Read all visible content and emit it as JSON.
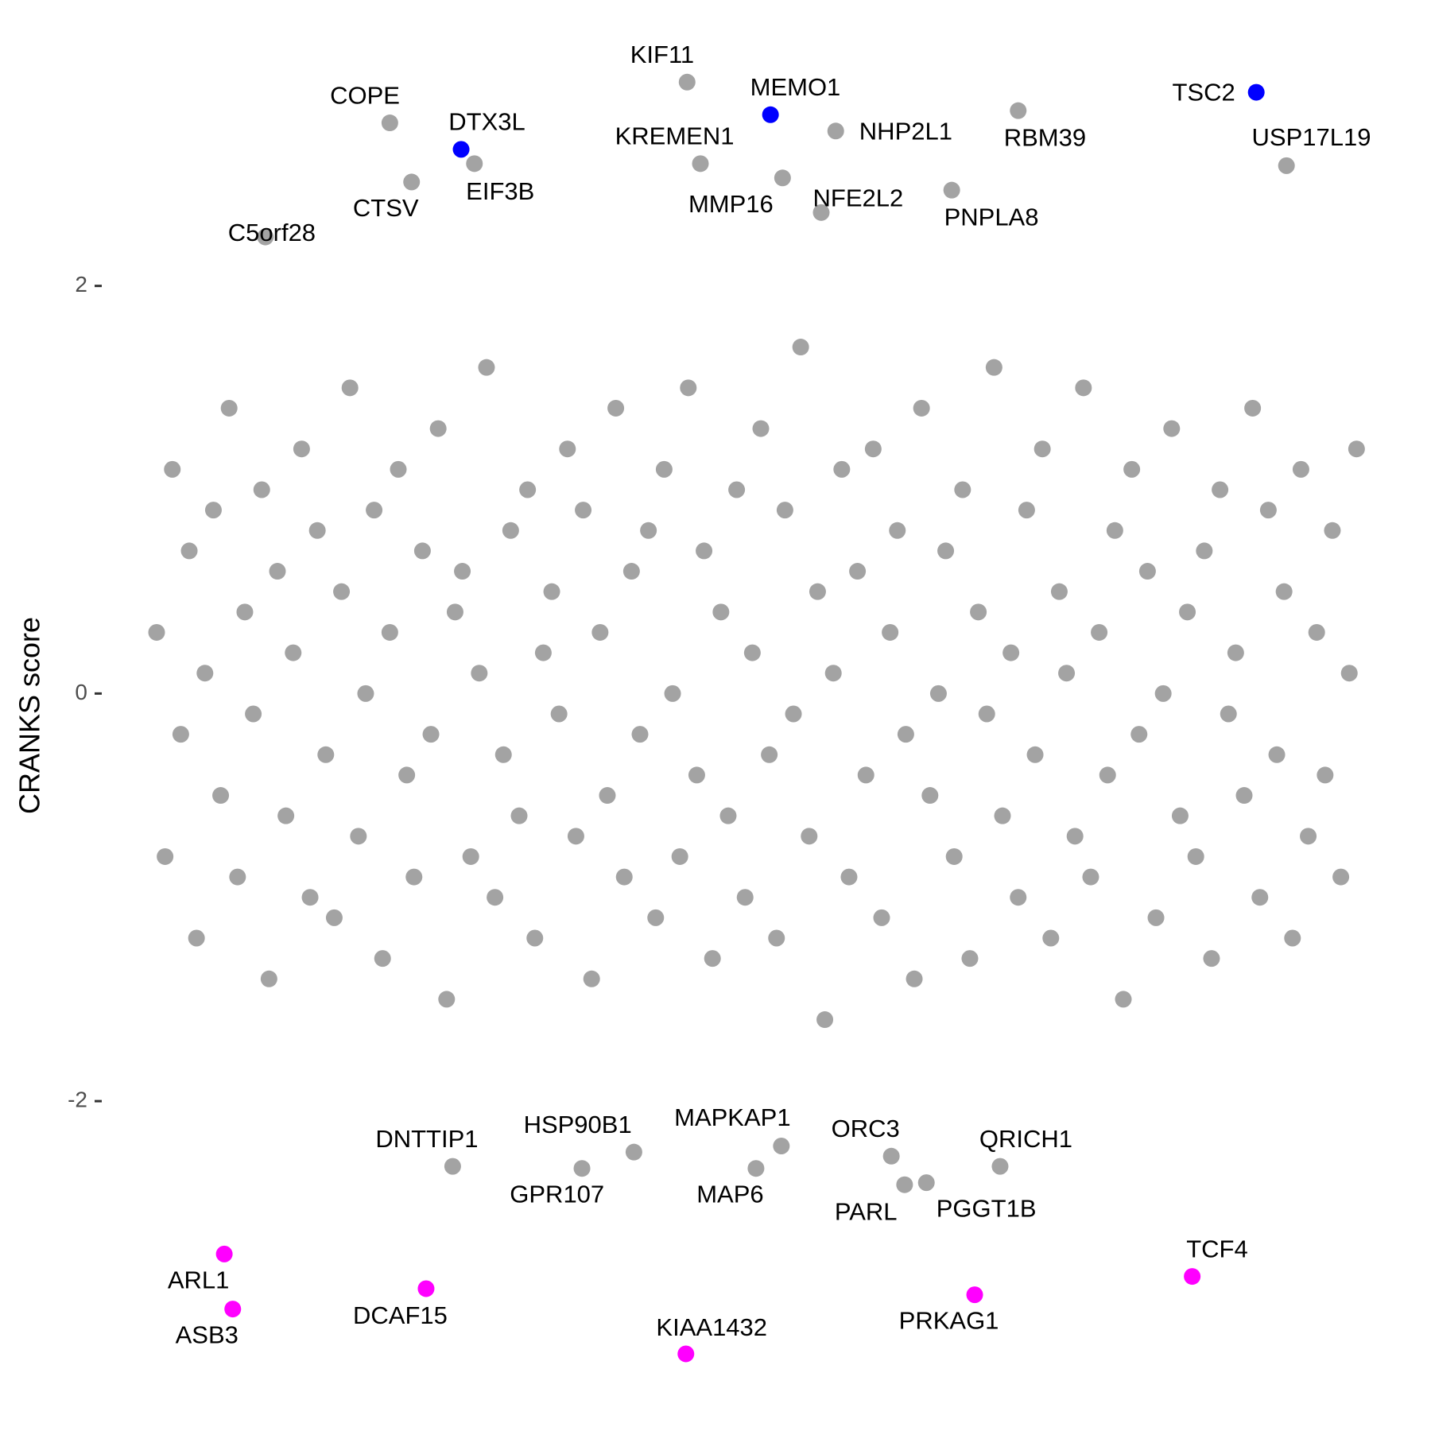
{
  "chart_data": {
    "type": "scatter",
    "y_label": "CRANKS score",
    "xlim": [
      0,
      100
    ],
    "ylim": [
      -3.4,
      3.2
    ],
    "yticks": [
      -2,
      0,
      2
    ],
    "series": [
      {
        "color": "#a3a3a3",
        "x": [
          0,
          0.7,
          1.3,
          2,
          2.7,
          3.3,
          4,
          4.7,
          5.3,
          6,
          6.7,
          7.3,
          8,
          8.7,
          9.3,
          10,
          10.7,
          11.3,
          12,
          12.7,
          13.3,
          14,
          14.7,
          15.3,
          16,
          16.7,
          17.3,
          18,
          18.7,
          19.3,
          20,
          20.7,
          21.3,
          22,
          22.7,
          23.3,
          24,
          24.7,
          25.3,
          26,
          26.7,
          27.3,
          28,
          28.7,
          29.3,
          30,
          30.7,
          31.3,
          32,
          32.7,
          33.3,
          34,
          34.7,
          35.3,
          36,
          36.7,
          37.3,
          38,
          38.7,
          39.3,
          40,
          40.7,
          41.3,
          42,
          42.7,
          43.3,
          44,
          44.7,
          45.3,
          46,
          46.7,
          47.3,
          48,
          48.7,
          49.3,
          50,
          50.7,
          51.3,
          52,
          52.7,
          53.3,
          54,
          54.7,
          55.3,
          56,
          56.7,
          57.3,
          58,
          58.7,
          59.3,
          60,
          60.7,
          61.3,
          62,
          62.7,
          63.3,
          64,
          64.7,
          65.3,
          66,
          66.7,
          67.3,
          68,
          68.7,
          69.3,
          70,
          70.7,
          71.3,
          72,
          72.7,
          73.3,
          74,
          74.7,
          75.3,
          76,
          76.7,
          77.3,
          78,
          78.7,
          79.3,
          80,
          80.7,
          81.3,
          82,
          82.7,
          83.3,
          84,
          84.7,
          85.3,
          86,
          86.7,
          87.3,
          88,
          88.7,
          89.3,
          90,
          90.7,
          91.3,
          92,
          92.7,
          93.3,
          94,
          94.7,
          95.3,
          96,
          96.7,
          97.3,
          98,
          98.7,
          99.3
        ],
        "y": [
          0.3,
          -0.8,
          1.1,
          -0.2,
          0.7,
          -1.2,
          0.1,
          0.9,
          -0.5,
          1.4,
          -0.9,
          0.4,
          -0.1,
          1.0,
          -1.4,
          0.6,
          -0.6,
          0.2,
          1.2,
          -1.0,
          0.8,
          -0.3,
          -1.1,
          0.5,
          1.5,
          -0.7,
          0.0,
          0.9,
          -1.3,
          0.3,
          1.1,
          -0.4,
          -0.9,
          0.7,
          -0.2,
          1.3,
          -1.5,
          0.4,
          0.6,
          -0.8,
          0.1,
          1.6,
          -1.0,
          -0.3,
          0.8,
          -0.6,
          1.0,
          -1.2,
          0.2,
          0.5,
          -0.1,
          1.2,
          -0.7,
          0.9,
          -1.4,
          0.3,
          -0.5,
          1.4,
          -0.9,
          0.6,
          -0.2,
          0.8,
          -1.1,
          1.1,
          0.0,
          -0.8,
          1.5,
          -0.4,
          0.7,
          -1.3,
          0.4,
          -0.6,
          1.0,
          -1.0,
          0.2,
          1.3,
          -0.3,
          -1.2,
          0.9,
          -0.1,
          1.7,
          -0.7,
          0.5,
          -1.6,
          0.1,
          1.1,
          -0.9,
          0.6,
          -0.4,
          1.2,
          -1.1,
          0.3,
          0.8,
          -0.2,
          -1.4,
          1.4,
          -0.5,
          0.0,
          0.7,
          -0.8,
          1.0,
          -1.3,
          0.4,
          -0.1,
          1.6,
          -0.6,
          0.2,
          -1.0,
          0.9,
          -0.3,
          1.2,
          -1.2,
          0.5,
          0.1,
          -0.7,
          1.5,
          -0.9,
          0.3,
          -0.4,
          0.8,
          -1.5,
          1.1,
          -0.2,
          0.6,
          -1.1,
          0.0,
          1.3,
          -0.6,
          0.4,
          -0.8,
          0.7,
          -1.3,
          1.0,
          -0.1,
          0.2,
          -0.5,
          1.4,
          -1.0,
          0.9,
          -0.3,
          0.5,
          -1.2,
          1.1,
          -0.7,
          0.3,
          -0.4,
          0.8,
          -0.9,
          0.1,
          1.2
        ]
      }
    ],
    "labeled_points": [
      {
        "label": "KIF11",
        "x": 43.9,
        "y": 3.0,
        "color": "#a3a3a3"
      },
      {
        "label": "COPE",
        "x": 19.3,
        "y": 2.8,
        "color": "#a3a3a3"
      },
      {
        "label": "DTX3L",
        "x": 25.2,
        "y": 2.67,
        "color": "#0000ff"
      },
      {
        "label": "EIF3B",
        "x": 26.3,
        "y": 2.6,
        "color": "#a3a3a3"
      },
      {
        "label": "MEMO1",
        "x": 50.8,
        "y": 2.84,
        "color": "#0000ff"
      },
      {
        "label": "KREMEN1",
        "x": 45.0,
        "y": 2.6,
        "color": "#a3a3a3"
      },
      {
        "label": "NHP2L1",
        "x": 56.2,
        "y": 2.76,
        "color": "#a3a3a3"
      },
      {
        "label": "MMP16",
        "x": 51.8,
        "y": 2.53,
        "color": "#a3a3a3"
      },
      {
        "label": "NFE2L2",
        "x": 55.0,
        "y": 2.36,
        "color": "#a3a3a3"
      },
      {
        "label": "RBM39",
        "x": 71.3,
        "y": 2.86,
        "color": "#a3a3a3"
      },
      {
        "label": "TSC2",
        "x": 91.0,
        "y": 2.95,
        "color": "#0000ff"
      },
      {
        "label": "USP17L19",
        "x": 93.5,
        "y": 2.59,
        "color": "#a3a3a3"
      },
      {
        "label": "PNPLA8",
        "x": 65.8,
        "y": 2.47,
        "color": "#a3a3a3"
      },
      {
        "label": "CTSV",
        "x": 21.1,
        "y": 2.51,
        "color": "#a3a3a3"
      },
      {
        "label": "C5orf28",
        "x": 9.0,
        "y": 2.24,
        "color": "#a3a3a3"
      },
      {
        "label": "DNTTIP1",
        "x": 24.5,
        "y": -2.32,
        "color": "#a3a3a3"
      },
      {
        "label": "HSP90B1",
        "x": 39.5,
        "y": -2.25,
        "color": "#a3a3a3"
      },
      {
        "label": "GPR107",
        "x": 35.2,
        "y": -2.33,
        "color": "#a3a3a3"
      },
      {
        "label": "MAPKAP1",
        "x": 51.7,
        "y": -2.22,
        "color": "#a3a3a3"
      },
      {
        "label": "MAP6",
        "x": 49.6,
        "y": -2.33,
        "color": "#a3a3a3"
      },
      {
        "label": "ORC3",
        "x": 60.8,
        "y": -2.27,
        "color": "#a3a3a3"
      },
      {
        "label": "PARL",
        "x": 61.9,
        "y": -2.41,
        "color": "#a3a3a3"
      },
      {
        "label": "PGGT1B",
        "x": 63.7,
        "y": -2.4,
        "color": "#a3a3a3"
      },
      {
        "label": "QRICH1",
        "x": 69.8,
        "y": -2.32,
        "color": "#a3a3a3"
      },
      {
        "label": "ARL1",
        "x": 5.6,
        "y": -2.75,
        "color": "#ff00ff"
      },
      {
        "label": "ASB3",
        "x": 6.3,
        "y": -3.02,
        "color": "#ff00ff"
      },
      {
        "label": "DCAF15",
        "x": 22.3,
        "y": -2.92,
        "color": "#ff00ff"
      },
      {
        "label": "KIAA1432",
        "x": 43.8,
        "y": -3.24,
        "color": "#ff00ff"
      },
      {
        "label": "PRKAG1",
        "x": 67.7,
        "y": -2.95,
        "color": "#ff00ff"
      },
      {
        "label": "TCF4",
        "x": 85.7,
        "y": -2.86,
        "color": "#ff00ff"
      }
    ]
  }
}
